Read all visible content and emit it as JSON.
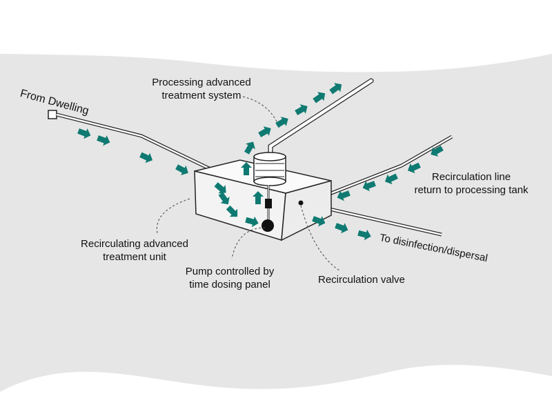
{
  "diagram": {
    "labels": {
      "from_dwelling": "From Dwelling",
      "processing_line1": "Processing advanced",
      "processing_line2": "treatment system",
      "recirc_line1": "Recirculation line",
      "recirc_line2": "return to processing tank",
      "unit_line1": "Recirculating advanced",
      "unit_line2": "treatment unit",
      "pump_line1": "Pump controlled by",
      "pump_line2": "time dosing panel",
      "valve": "Recirculation valve",
      "disinfection": "To disinfection/dispersal"
    },
    "colors": {
      "background": "#e6e6e6",
      "arrow": "#0f7a72",
      "outline": "#222222",
      "box": "#f5f5f5"
    },
    "icons": {
      "flow_arrow": "flow-arrow-icon",
      "pump": "pump-icon",
      "filter": "filter-cylinder-icon",
      "valve": "valve-icon"
    }
  }
}
